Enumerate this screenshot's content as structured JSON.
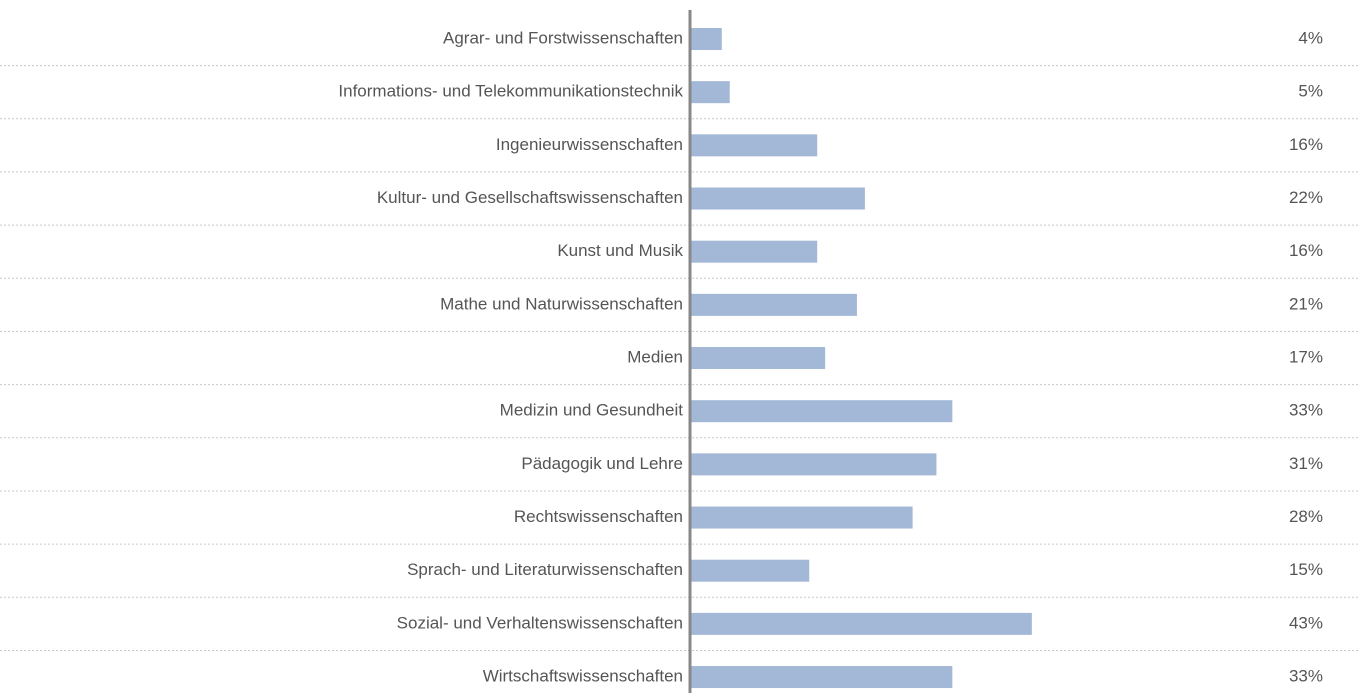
{
  "chart_data": {
    "type": "bar",
    "orientation": "horizontal",
    "categories": [
      "Agrar- und Forstwissenschaften",
      "Informations- und Telekommunikationstechnik",
      "Ingenieurwissenschaften",
      "Kultur- und Gesellschaftswissenschaften",
      "Kunst und Musik",
      "Mathe und Naturwissenschaften",
      "Medien",
      "Medizin und Gesundheit",
      "Pädagogik und Lehre",
      "Rechtswissenschaften",
      "Sprach- und Literaturwissenschaften",
      "Sozial- und Verhaltenswissenschaften",
      "Wirtschaftswissenschaften"
    ],
    "values": [
      4,
      5,
      16,
      22,
      16,
      21,
      17,
      33,
      31,
      28,
      15,
      43,
      33
    ],
    "value_labels": [
      "4%",
      "5%",
      "16%",
      "22%",
      "16%",
      "21%",
      "17%",
      "33%",
      "31%",
      "28%",
      "15%",
      "43%",
      "33%"
    ],
    "color": "#a3b8d6"
  }
}
